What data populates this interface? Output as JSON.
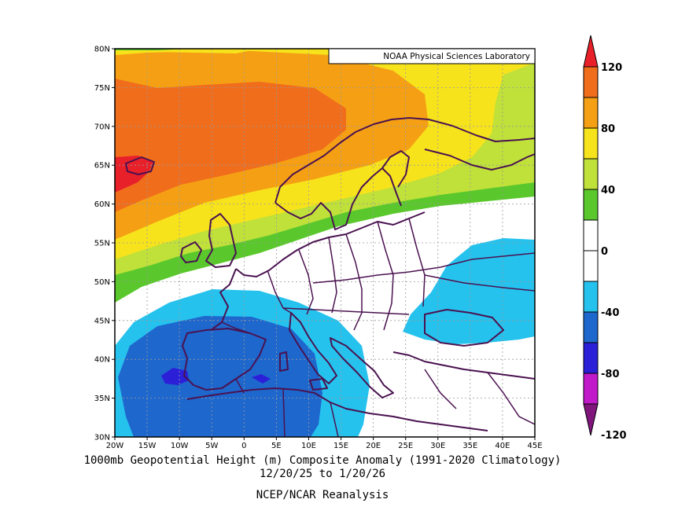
{
  "map": {
    "credit": "NOAA Physical Sciences Laboratory",
    "y_ticks": [
      "80N",
      "75N",
      "70N",
      "65N",
      "60N",
      "55N",
      "50N",
      "45N",
      "40N",
      "35N",
      "30N"
    ],
    "x_ticks": [
      "20W",
      "15W",
      "10W",
      "5W",
      "0",
      "5E",
      "10E",
      "15E",
      "20E",
      "25E",
      "30E",
      "35E",
      "40E",
      "45E"
    ]
  },
  "colorbar": {
    "labels": [
      "120",
      "80",
      "40",
      "0",
      "-40",
      "-80",
      "-120"
    ],
    "colors": [
      "#e8202a",
      "#f06d1c",
      "#f5a014",
      "#f7e31c",
      "#c0e03a",
      "#5ac82c",
      "#ffffff",
      "#ffffff",
      "#26c2ee",
      "#1e67cd",
      "#2b1fd8",
      "#c11ac8",
      "#80157c"
    ]
  },
  "caption": {
    "title": "1000mb Geopotential Height (m) Composite Anomaly (1991-2020 Climatology)",
    "dates": "12/20/25 to 1/20/26",
    "source": "NCEP/NCAR Reanalysis"
  }
}
